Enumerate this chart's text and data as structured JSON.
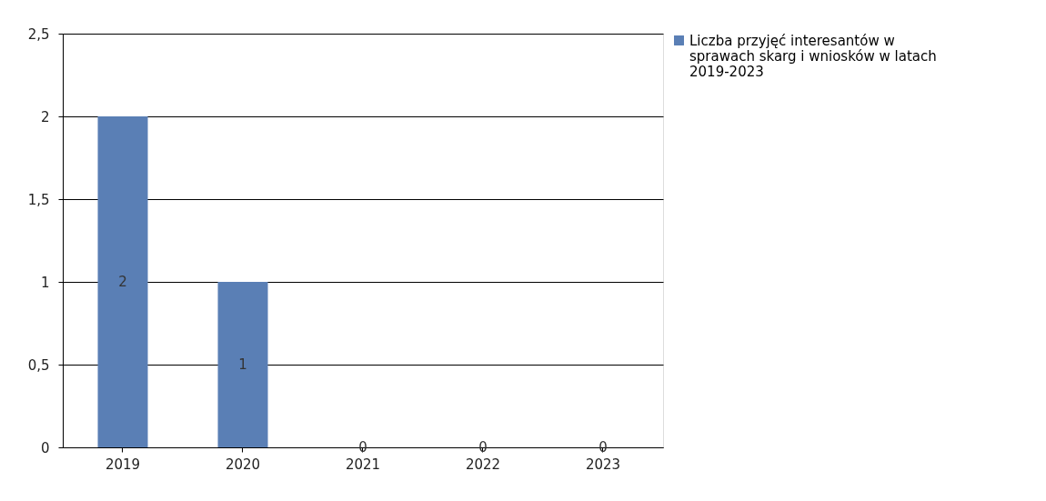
{
  "chart_data": {
    "type": "bar",
    "categories": [
      "2019",
      "2020",
      "2021",
      "2022",
      "2023"
    ],
    "series": [
      {
        "name": "Liczba przyjęć interesantów w sprawach skarg i wniosków w latach 2019-2023",
        "color": "#5a7fb5",
        "values": [
          2,
          1,
          0,
          0,
          0
        ]
      }
    ],
    "ylim": [
      0,
      2.5
    ],
    "yticks": [
      0,
      {
        "value": 0.5,
        "label": "0,5"
      },
      1,
      {
        "value": 1.5,
        "label": "1,5"
      },
      2,
      {
        "value": 2.5,
        "label": "2,5"
      }
    ],
    "grid": "y",
    "legend": "right",
    "data_labels": true
  }
}
